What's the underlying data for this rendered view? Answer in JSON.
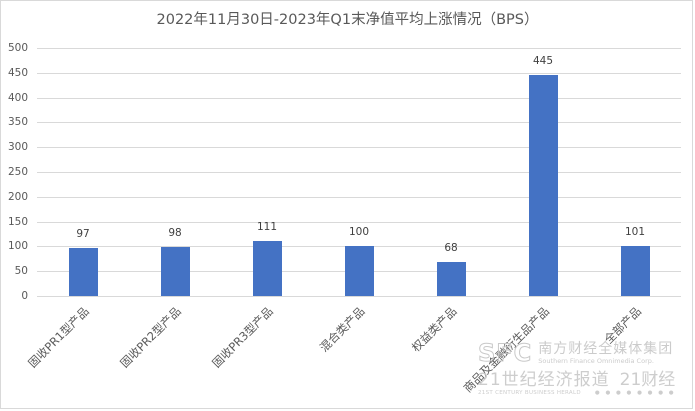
{
  "chart_data": {
    "type": "bar",
    "title": "2022年11月30日-2023年Q1末净值平均上涨情况（BPS）",
    "xlabel": "",
    "ylabel": "",
    "ylim": [
      0,
      500
    ],
    "yticks": [
      0,
      50,
      100,
      150,
      200,
      250,
      300,
      350,
      400,
      450,
      500
    ],
    "grid": true,
    "legend": "none",
    "bar_color": "#4472c4",
    "categories": [
      "固收PR1型产品",
      "固收PR2型产品",
      "固收PR3型产品",
      "混合类产品",
      "权益类产品",
      "商品及金融衍生品产品",
      "全部产品"
    ],
    "values": [
      97,
      98,
      111,
      100,
      68,
      445,
      101
    ],
    "data_labels": [
      "97",
      "98",
      "111",
      "100",
      "68",
      "445",
      "101"
    ]
  },
  "watermark": {
    "logo": "SFC",
    "group_cn": "南方财经全媒体集团",
    "group_en": "Southern Finance Omnimedia Corp.",
    "paper_cn": "21世纪经济报道",
    "paper_en": "21ST CENTURY BUSINESS HERALD",
    "brand": "21财经",
    "brand_dots": "● ● ● ● ● ● ● ●"
  }
}
